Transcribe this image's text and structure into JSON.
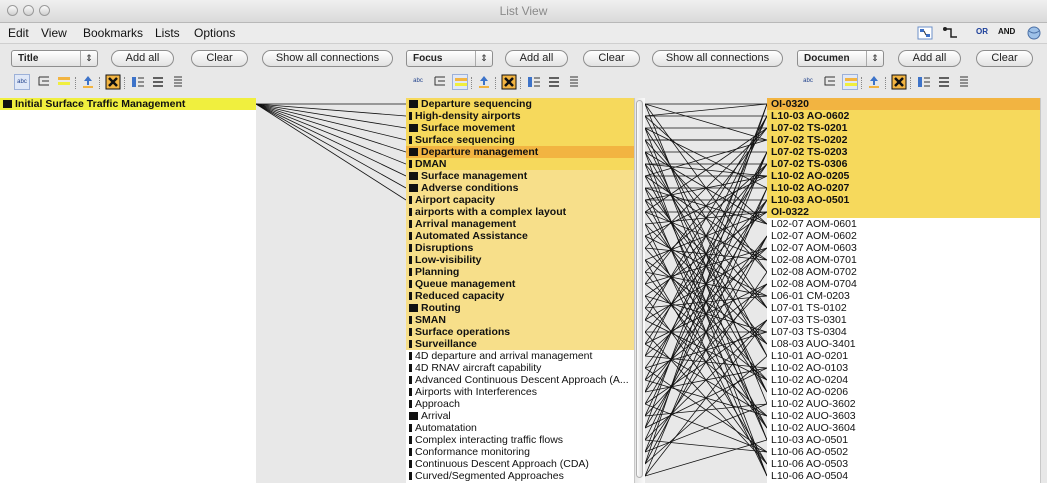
{
  "window": {
    "title": "List View"
  },
  "menubar": {
    "items": [
      "Edit",
      "View",
      "Bookmarks",
      "Lists",
      "Options"
    ]
  },
  "toolbar_right": {
    "or_label": "OR",
    "and_label": "AND"
  },
  "panels": [
    {
      "type": "Title",
      "add_all": "Add all",
      "clear": "Clear",
      "show_all": "Show all connections",
      "items": [
        {
          "label": "Initial Surface Traffic Management",
          "highlight": "#f0ef3e",
          "marker": "big"
        }
      ]
    },
    {
      "type": "Focus",
      "add_all": "Add all",
      "clear": "Clear",
      "show_all": "Show all connections",
      "items": [
        {
          "label": "Departure sequencing",
          "highlight": "#f6d95c",
          "marker": "big"
        },
        {
          "label": "High-density airports",
          "highlight": "#f6d95c",
          "marker": "small"
        },
        {
          "label": "Surface movement",
          "highlight": "#f6d95c",
          "marker": "big"
        },
        {
          "label": "Surface sequencing",
          "highlight": "#f6d95c",
          "marker": "small"
        },
        {
          "label": "Departure management",
          "highlight": "#f2b441",
          "marker": "big"
        },
        {
          "label": "DMAN",
          "highlight": "#f6d95c",
          "marker": "small"
        },
        {
          "label": "Surface management",
          "highlight": "#f7df8a",
          "marker": "big"
        },
        {
          "label": "Adverse conditions",
          "highlight": "#f7df8a",
          "marker": "big"
        },
        {
          "label": "Airport capacity",
          "highlight": "#f7df8a",
          "marker": "small"
        },
        {
          "label": "airports with a complex layout",
          "highlight": "#f7df8a",
          "marker": "small"
        },
        {
          "label": "Arrival management",
          "highlight": "#f7df8a",
          "marker": "small"
        },
        {
          "label": "Automated Assistance",
          "highlight": "#f7df8a",
          "marker": "small"
        },
        {
          "label": "Disruptions",
          "highlight": "#f7df8a",
          "marker": "small"
        },
        {
          "label": "Low-visibility",
          "highlight": "#f7df8a",
          "marker": "small"
        },
        {
          "label": "Planning",
          "highlight": "#f7df8a",
          "marker": "small"
        },
        {
          "label": "Queue management",
          "highlight": "#f7df8a",
          "marker": "small"
        },
        {
          "label": "Reduced capacity",
          "highlight": "#f7df8a",
          "marker": "small"
        },
        {
          "label": "Routing",
          "highlight": "#f7df8a",
          "marker": "big"
        },
        {
          "label": "SMAN",
          "highlight": "#f7df8a",
          "marker": "small"
        },
        {
          "label": "Surface operations",
          "highlight": "#f7df8a",
          "marker": "small"
        },
        {
          "label": "Surveillance",
          "highlight": "#f7df8a",
          "marker": "small"
        },
        {
          "label": "4D departure and arrival management",
          "highlight": "",
          "marker": "small"
        },
        {
          "label": "4D RNAV aircraft capability",
          "highlight": "",
          "marker": "small"
        },
        {
          "label": "Advanced Continuous Descent Approach (A...",
          "highlight": "",
          "marker": "small"
        },
        {
          "label": "Airports with Interferences",
          "highlight": "",
          "marker": "small"
        },
        {
          "label": "Approach",
          "highlight": "",
          "marker": "small"
        },
        {
          "label": "Arrival",
          "highlight": "",
          "marker": "big"
        },
        {
          "label": "Automatation",
          "highlight": "",
          "marker": "small"
        },
        {
          "label": "Complex interacting traffic flows",
          "highlight": "",
          "marker": "small"
        },
        {
          "label": "Conformance monitoring",
          "highlight": "",
          "marker": "small"
        },
        {
          "label": "Continuous Descent Approach (CDA)",
          "highlight": "",
          "marker": "small"
        },
        {
          "label": "Curved/Segmented Approaches",
          "highlight": "",
          "marker": "small"
        }
      ]
    },
    {
      "type": "Documen",
      "add_all": "Add all",
      "clear": "Clear",
      "items": [
        {
          "label": "OI-0320",
          "highlight": "#f2b441"
        },
        {
          "label": "L10-03 AO-0602",
          "highlight": "#f6d95c"
        },
        {
          "label": "L07-02 TS-0201",
          "highlight": "#f6d95c"
        },
        {
          "label": "L07-02 TS-0202",
          "highlight": "#f6d95c"
        },
        {
          "label": "L07-02 TS-0203",
          "highlight": "#f6d95c"
        },
        {
          "label": "L07-02 TS-0306",
          "highlight": "#f6d95c"
        },
        {
          "label": "L10-02 AO-0205",
          "highlight": "#f6d95c"
        },
        {
          "label": "L10-02 AO-0207",
          "highlight": "#f6d95c"
        },
        {
          "label": "L10-03 AO-0501",
          "highlight": "#f6d95c"
        },
        {
          "label": "OI-0322",
          "highlight": "#f6d95c"
        },
        {
          "label": "L02-07 AOM-0601",
          "highlight": ""
        },
        {
          "label": "L02-07 AOM-0602",
          "highlight": ""
        },
        {
          "label": "L02-07 AOM-0603",
          "highlight": ""
        },
        {
          "label": "L02-08 AOM-0701",
          "highlight": ""
        },
        {
          "label": "L02-08 AOM-0702",
          "highlight": ""
        },
        {
          "label": "L02-08 AOM-0704",
          "highlight": ""
        },
        {
          "label": "L06-01 CM-0203",
          "highlight": ""
        },
        {
          "label": "L07-01 TS-0102",
          "highlight": ""
        },
        {
          "label": "L07-03 TS-0301",
          "highlight": ""
        },
        {
          "label": "L07-03 TS-0304",
          "highlight": ""
        },
        {
          "label": "L08-03 AUO-3401",
          "highlight": ""
        },
        {
          "label": "L10-01 AO-0201",
          "highlight": ""
        },
        {
          "label": "L10-02 AO-0103",
          "highlight": ""
        },
        {
          "label": "L10-02 AO-0204",
          "highlight": ""
        },
        {
          "label": "L10-02 AO-0206",
          "highlight": ""
        },
        {
          "label": "L10-02 AUO-3602",
          "highlight": ""
        },
        {
          "label": "L10-02 AUO-3603",
          "highlight": ""
        },
        {
          "label": "L10-02 AUO-3604",
          "highlight": ""
        },
        {
          "label": "L10-03 AO-0501",
          "highlight": ""
        },
        {
          "label": "L10-06 AO-0502",
          "highlight": ""
        },
        {
          "label": "L10-06 AO-0503",
          "highlight": ""
        },
        {
          "label": "L10-06 AO-0504",
          "highlight": ""
        }
      ]
    }
  ]
}
